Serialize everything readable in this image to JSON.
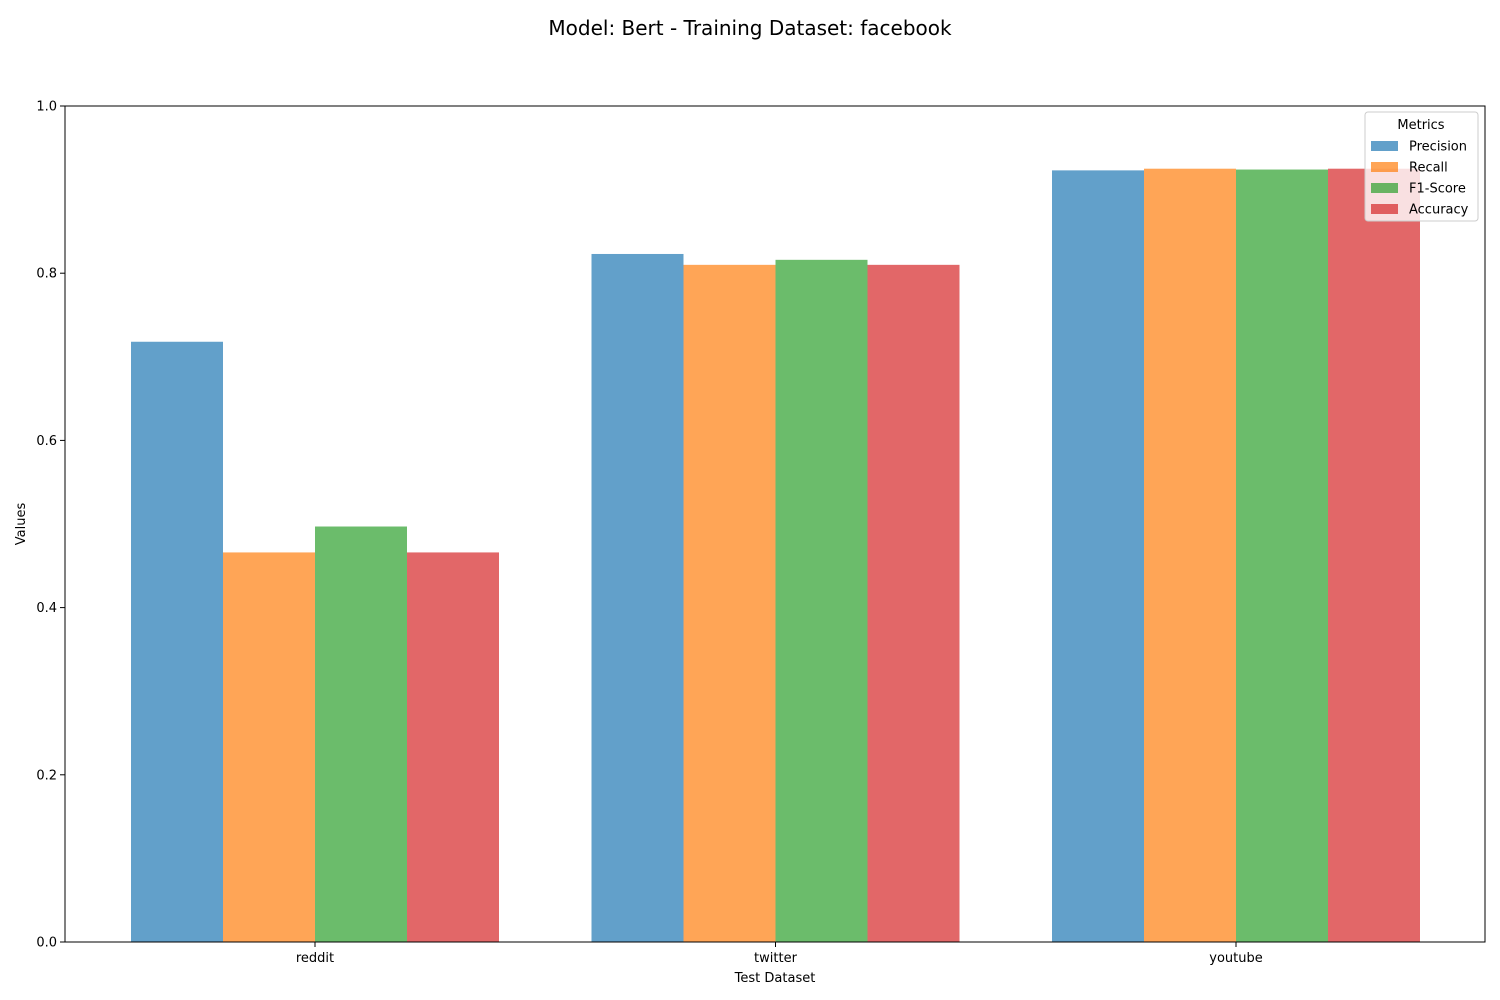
{
  "chart_data": {
    "type": "bar",
    "title": "Model: Bert - Training Dataset: facebook",
    "xlabel": "Test Dataset",
    "ylabel": "Values",
    "categories": [
      "reddit",
      "twitter",
      "youtube"
    ],
    "ylim": [
      0,
      1.0
    ],
    "yticks": [
      "0.0",
      "0.2",
      "0.4",
      "0.6",
      "0.8",
      "1.0"
    ],
    "grid": false,
    "legend": {
      "title": "Metrics",
      "placement": "top-right"
    },
    "series": [
      {
        "name": "Precision",
        "color": "#1f77b4",
        "values": [
          0.718,
          0.823,
          0.923
        ]
      },
      {
        "name": "Recall",
        "color": "#ff7f0e",
        "values": [
          0.466,
          0.81,
          0.925
        ]
      },
      {
        "name": "F1-Score",
        "color": "#2ca02c",
        "values": [
          0.497,
          0.816,
          0.924
        ]
      },
      {
        "name": "Accuracy",
        "color": "#d62728",
        "values": [
          0.466,
          0.81,
          0.925
        ]
      }
    ]
  }
}
